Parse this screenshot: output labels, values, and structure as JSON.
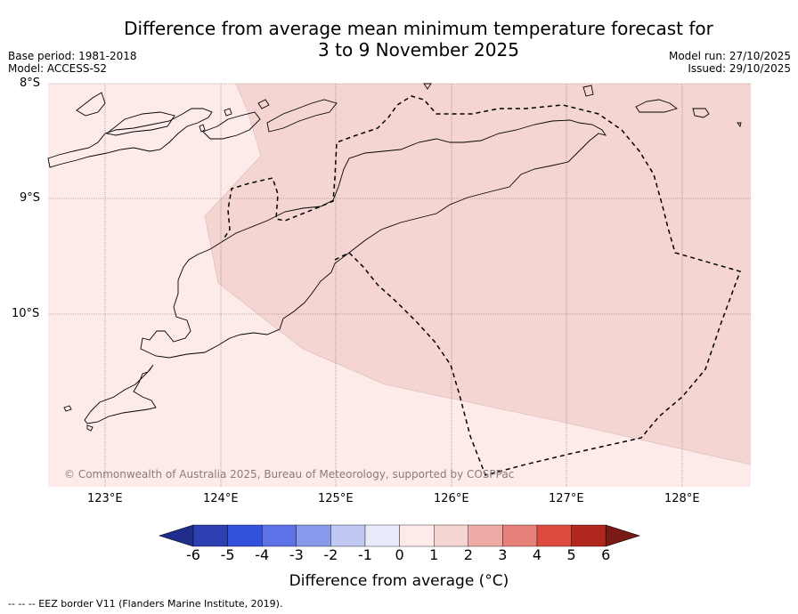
{
  "title_line1": "Difference from average mean minimum temperature forecast for",
  "title_line2": "3 to 9 November 2025",
  "base_period": "Base period: 1981-2018",
  "model": "Model: ACCESS-S2",
  "model_run": "Model run: 27/10/2025",
  "issued": "Issued: 29/10/2025",
  "lat_labels": [
    "8°S",
    "9°S",
    "10°S"
  ],
  "lon_labels": [
    "123°E",
    "124°E",
    "125°E",
    "126°E",
    "127°E",
    "128°E"
  ],
  "copyright": "© Commonwealth of Australia 2025, Bureau of Meteorology, supported by COSPPac",
  "colorbar": {
    "ticks": [
      "-6",
      "-5",
      "-4",
      "-3",
      "-2",
      "-1",
      "0",
      "1",
      "2",
      "3",
      "4",
      "5",
      "6"
    ],
    "colors": [
      "#1f2d8c",
      "#2b3fb0",
      "#3250dc",
      "#5c72e6",
      "#8899ec",
      "#c0c8f3",
      "#e8ebfa",
      "#fcebe9",
      "#f5d5d2",
      "#eeaba6",
      "#e78078",
      "#dd4a3e",
      "#b0271f",
      "#7a1a14"
    ],
    "title": "Difference from average (°C)"
  },
  "map_fill": {
    "zone_0_1": "#fcebe9",
    "zone_1_2": "#f5d5d2"
  },
  "footnote": "--  --  -- EEZ border V11 (Flanders Marine Institute, 2019)."
}
